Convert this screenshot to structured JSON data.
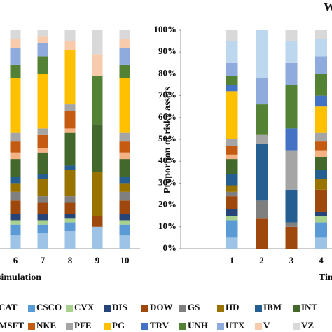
{
  "chart_data": [
    {
      "type": "bar",
      "stacked": true,
      "x_label": "simulation",
      "categories": [
        "6",
        "7",
        "8",
        "9",
        "10"
      ],
      "ylim": [
        0,
        100
      ],
      "series": [
        {
          "name": "CAT",
          "color": "#9dc3e6",
          "values": [
            6,
            7,
            8,
            10,
            6
          ]
        },
        {
          "name": "CSCO",
          "color": "#5b9bd5",
          "values": [
            5,
            4,
            4,
            0,
            5
          ]
        },
        {
          "name": "CVX",
          "color": "#a9d18e",
          "values": [
            2,
            2,
            2,
            0,
            2
          ]
        },
        {
          "name": "DIS",
          "color": "#264478",
          "values": [
            3,
            3,
            2,
            0,
            3
          ]
        },
        {
          "name": "DOW",
          "color": "#9e480e",
          "values": [
            6,
            5,
            5,
            5,
            6
          ]
        },
        {
          "name": "GS",
          "color": "#7f7f7f",
          "values": [
            4,
            3,
            3,
            0,
            4
          ]
        },
        {
          "name": "HD",
          "color": "#997300",
          "values": [
            4,
            8,
            12,
            20,
            4
          ]
        },
        {
          "name": "IBM",
          "color": "#255e91",
          "values": [
            3,
            2,
            2,
            0,
            3
          ]
        },
        {
          "name": "INT",
          "color": "#43682b",
          "values": [
            8,
            10,
            15,
            22,
            8
          ]
        },
        {
          "name": "MSFT",
          "color": "#f4b183",
          "values": [
            3,
            2,
            2,
            0,
            3
          ]
        },
        {
          "name": "NKE",
          "color": "#c55a11",
          "values": [
            5,
            6,
            8,
            0,
            5
          ]
        },
        {
          "name": "PFE",
          "color": "#a5a5a5",
          "values": [
            4,
            3,
            3,
            0,
            4
          ]
        },
        {
          "name": "PG",
          "color": "#ffc000",
          "values": [
            25,
            25,
            25,
            0,
            25
          ]
        },
        {
          "name": "TRV",
          "color": "#4472c4",
          "values": [
            0,
            0,
            0,
            0,
            0
          ]
        },
        {
          "name": "UNH",
          "color": "#548235",
          "values": [
            6,
            8,
            0,
            22,
            6
          ]
        },
        {
          "name": "UTX",
          "color": "#8faadc",
          "values": [
            8,
            6,
            0,
            0,
            8
          ]
        },
        {
          "name": "V",
          "color": "#f8cbad",
          "values": [
            4,
            3,
            4,
            10,
            4
          ]
        },
        {
          "name": "VZ",
          "color": "#d9d9d9",
          "values": [
            4,
            3,
            5,
            11,
            4
          ]
        }
      ]
    },
    {
      "type": "bar",
      "stacked": true,
      "title": "W",
      "x_label": "Tim",
      "y_label": "Proportion of risky assets",
      "categories": [
        "1",
        "2",
        "3",
        "4"
      ],
      "ylim": [
        0,
        100
      ],
      "yticks": [
        {
          "value": 0,
          "label": "0%"
        },
        {
          "value": 10,
          "label": "10%"
        },
        {
          "value": 20,
          "label": "20%"
        },
        {
          "value": 30,
          "label": "30%"
        },
        {
          "value": 40,
          "label": "40%"
        },
        {
          "value": 50,
          "label": "50%"
        },
        {
          "value": 60,
          "label": "60%"
        },
        {
          "value": 70,
          "label": "70%"
        },
        {
          "value": 80,
          "label": "80%"
        },
        {
          "value": 90,
          "label": "90%"
        },
        {
          "value": 100,
          "label": "100%"
        }
      ],
      "series": [
        {
          "color": "#9dc3e6",
          "values": [
            5,
            0,
            0,
            5
          ]
        },
        {
          "color": "#5b9bd5",
          "values": [
            8,
            0,
            0,
            7
          ]
        },
        {
          "color": "#a9d18e",
          "values": [
            2,
            0,
            0,
            3
          ]
        },
        {
          "color": "#264478",
          "values": [
            3,
            0,
            0,
            2
          ]
        },
        {
          "color": "#9e480e",
          "values": [
            6,
            14,
            10,
            10
          ]
        },
        {
          "color": "#7f7f7f",
          "values": [
            2,
            8,
            2,
            0
          ]
        },
        {
          "color": "#997300",
          "values": [
            3,
            0,
            0,
            5
          ]
        },
        {
          "color": "#255e91",
          "values": [
            5,
            26,
            15,
            4
          ]
        },
        {
          "color": "#43682b",
          "values": [
            7,
            0,
            0,
            6
          ]
        },
        {
          "color": "#f4b183",
          "values": [
            2,
            0,
            0,
            3
          ]
        },
        {
          "color": "#c55a11",
          "values": [
            4,
            0,
            0,
            4
          ]
        },
        {
          "color": "#a5a5a5",
          "values": [
            3,
            4,
            18,
            4
          ]
        },
        {
          "color": "#ffc000",
          "values": [
            22,
            0,
            0,
            12
          ]
        },
        {
          "color": "#4472c4",
          "values": [
            3,
            0,
            10,
            5
          ]
        },
        {
          "color": "#548235",
          "values": [
            4,
            14,
            20,
            10
          ]
        },
        {
          "color": "#8faadc",
          "values": [
            6,
            12,
            10,
            8
          ]
        },
        {
          "color": "#bdd7ee",
          "values": [
            10,
            22,
            10,
            8
          ]
        },
        {
          "color": "#d9d9d9",
          "values": [
            5,
            0,
            5,
            4
          ]
        }
      ]
    }
  ]
}
